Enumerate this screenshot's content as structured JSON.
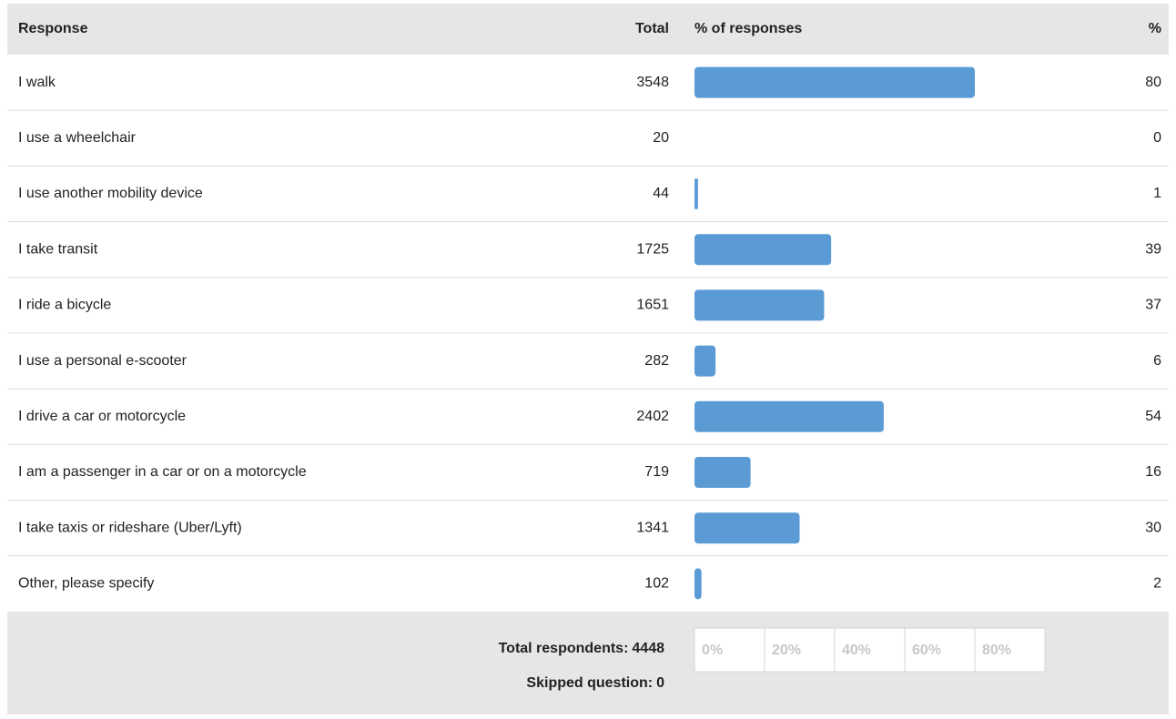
{
  "table": {
    "headers": [
      "Response",
      "Total",
      "% of responses",
      "%"
    ],
    "rows": [
      {
        "response": "I walk",
        "total": 3548,
        "percent": 80
      },
      {
        "response": "I use a wheelchair",
        "total": 20,
        "percent": 0
      },
      {
        "response": "I use another mobility device",
        "total": 44,
        "percent": 1
      },
      {
        "response": "I take transit",
        "total": 1725,
        "percent": 39
      },
      {
        "response": "I ride a bicycle",
        "total": 1651,
        "percent": 37
      },
      {
        "response": "I use a personal e-scooter",
        "total": 282,
        "percent": 6
      },
      {
        "response": "I drive a car or motorcycle",
        "total": 2402,
        "percent": 54
      },
      {
        "response": "I am a passenger in a car or on a motorcycle",
        "total": 719,
        "percent": 16
      },
      {
        "response": "I take taxis or rideshare (Uber/Lyft)",
        "total": 1341,
        "percent": 30
      },
      {
        "response": "Other, please specify",
        "total": 102,
        "percent": 2
      }
    ],
    "bar_color": "#5b9bd5",
    "xlim": [
      0,
      100
    ],
    "xticks": [
      {
        "value": 0,
        "label": "0%"
      },
      {
        "value": 20,
        "label": "20%"
      },
      {
        "value": 40,
        "label": "40%"
      },
      {
        "value": 60,
        "label": "60%"
      },
      {
        "value": 80,
        "label": "80%"
      }
    ]
  },
  "footer": {
    "total_respondents": {
      "label": "Total respondents:",
      "value": 4448
    },
    "skipped": {
      "label": "Skipped question:",
      "value": 0
    }
  }
}
